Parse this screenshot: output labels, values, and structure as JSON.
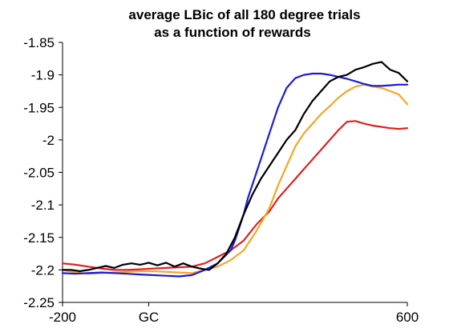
{
  "chart_data": {
    "type": "line",
    "title_lines": [
      "average LBic of all 180 degree trials",
      "as a function of rewards"
    ],
    "xlabel": "",
    "ylabel": "",
    "xlim": [
      -200,
      600
    ],
    "ylim": [
      -2.25,
      -1.85
    ],
    "y_ticks": [
      -1.85,
      -1.9,
      -1.95,
      -2,
      -2.05,
      -2.1,
      -2.15,
      -2.2,
      -2.25
    ],
    "y_tick_labels": [
      "-1.85",
      "-1.9",
      "-1.95",
      "-2",
      "-2.05",
      "-2.1",
      "-2.15",
      "-2.2",
      "-2.25"
    ],
    "x_ticks": [
      -200,
      0,
      600
    ],
    "x_tick_labels": [
      "-200",
      "GC",
      "600"
    ],
    "grid": false,
    "legend": "none",
    "series": [
      {
        "color": "#e02020",
        "x": [
          -200,
          -170,
          -140,
          -110,
          -80,
          -50,
          -20,
          10,
          40,
          70,
          100,
          130,
          160,
          190,
          220,
          250,
          280,
          300,
          320,
          340,
          360,
          380,
          400,
          420,
          440,
          460,
          480,
          500,
          520,
          540,
          560,
          580,
          600
        ],
        "y": [
          -2.19,
          -2.192,
          -2.195,
          -2.198,
          -2.2,
          -2.2,
          -2.199,
          -2.198,
          -2.197,
          -2.196,
          -2.195,
          -2.19,
          -2.18,
          -2.17,
          -2.155,
          -2.13,
          -2.11,
          -2.09,
          -2.075,
          -2.06,
          -2.045,
          -2.03,
          -2.015,
          -2.0,
          -1.985,
          -1.972,
          -1.971,
          -1.975,
          -1.978,
          -1.98,
          -1.982,
          -1.983,
          -1.982
        ]
      },
      {
        "color": "#f5a623",
        "x": [
          -200,
          -170,
          -140,
          -110,
          -80,
          -50,
          -20,
          10,
          40,
          70,
          100,
          130,
          160,
          190,
          220,
          250,
          280,
          300,
          320,
          340,
          360,
          380,
          400,
          420,
          440,
          460,
          480,
          500,
          520,
          540,
          560,
          580,
          600
        ],
        "y": [
          -2.2,
          -2.204,
          -2.206,
          -2.205,
          -2.204,
          -2.203,
          -2.202,
          -2.202,
          -2.203,
          -2.204,
          -2.205,
          -2.2,
          -2.195,
          -2.185,
          -2.17,
          -2.14,
          -2.105,
          -2.07,
          -2.04,
          -2.01,
          -1.99,
          -1.975,
          -1.96,
          -1.948,
          -1.935,
          -1.925,
          -1.918,
          -1.915,
          -1.918,
          -1.92,
          -1.925,
          -1.93,
          -1.945
        ]
      },
      {
        "color": "#1a1adc",
        "x": [
          -200,
          -170,
          -140,
          -110,
          -80,
          -50,
          -20,
          10,
          40,
          70,
          100,
          130,
          160,
          190,
          200,
          210,
          220,
          230,
          240,
          250,
          260,
          280,
          300,
          320,
          340,
          360,
          380,
          400,
          420,
          440,
          460,
          480,
          500,
          520,
          540,
          560,
          580,
          600
        ],
        "y": [
          -2.205,
          -2.206,
          -2.205,
          -2.204,
          -2.205,
          -2.206,
          -2.207,
          -2.208,
          -2.209,
          -2.21,
          -2.208,
          -2.2,
          -2.19,
          -2.17,
          -2.155,
          -2.135,
          -2.115,
          -2.09,
          -2.07,
          -2.05,
          -2.03,
          -1.99,
          -1.95,
          -1.92,
          -1.905,
          -1.9,
          -1.898,
          -1.898,
          -1.9,
          -1.903,
          -1.906,
          -1.91,
          -1.914,
          -1.917,
          -1.917,
          -1.916,
          -1.915,
          -1.915
        ]
      },
      {
        "color": "#000000",
        "x": [
          -200,
          -180,
          -160,
          -140,
          -120,
          -100,
          -80,
          -60,
          -40,
          -20,
          0,
          20,
          40,
          60,
          80,
          100,
          120,
          140,
          160,
          180,
          200,
          220,
          240,
          260,
          280,
          300,
          320,
          340,
          360,
          380,
          400,
          420,
          440,
          460,
          480,
          500,
          520,
          540,
          560,
          580,
          600
        ],
        "y": [
          -2.2,
          -2.2,
          -2.202,
          -2.2,
          -2.197,
          -2.194,
          -2.197,
          -2.192,
          -2.19,
          -2.192,
          -2.189,
          -2.193,
          -2.189,
          -2.195,
          -2.19,
          -2.195,
          -2.198,
          -2.2,
          -2.19,
          -2.175,
          -2.15,
          -2.115,
          -2.085,
          -2.06,
          -2.04,
          -2.02,
          -2.0,
          -1.985,
          -1.96,
          -1.94,
          -1.925,
          -1.91,
          -1.903,
          -1.9,
          -1.892,
          -1.888,
          -1.883,
          -1.88,
          -1.892,
          -1.897,
          -1.91
        ]
      }
    ]
  }
}
